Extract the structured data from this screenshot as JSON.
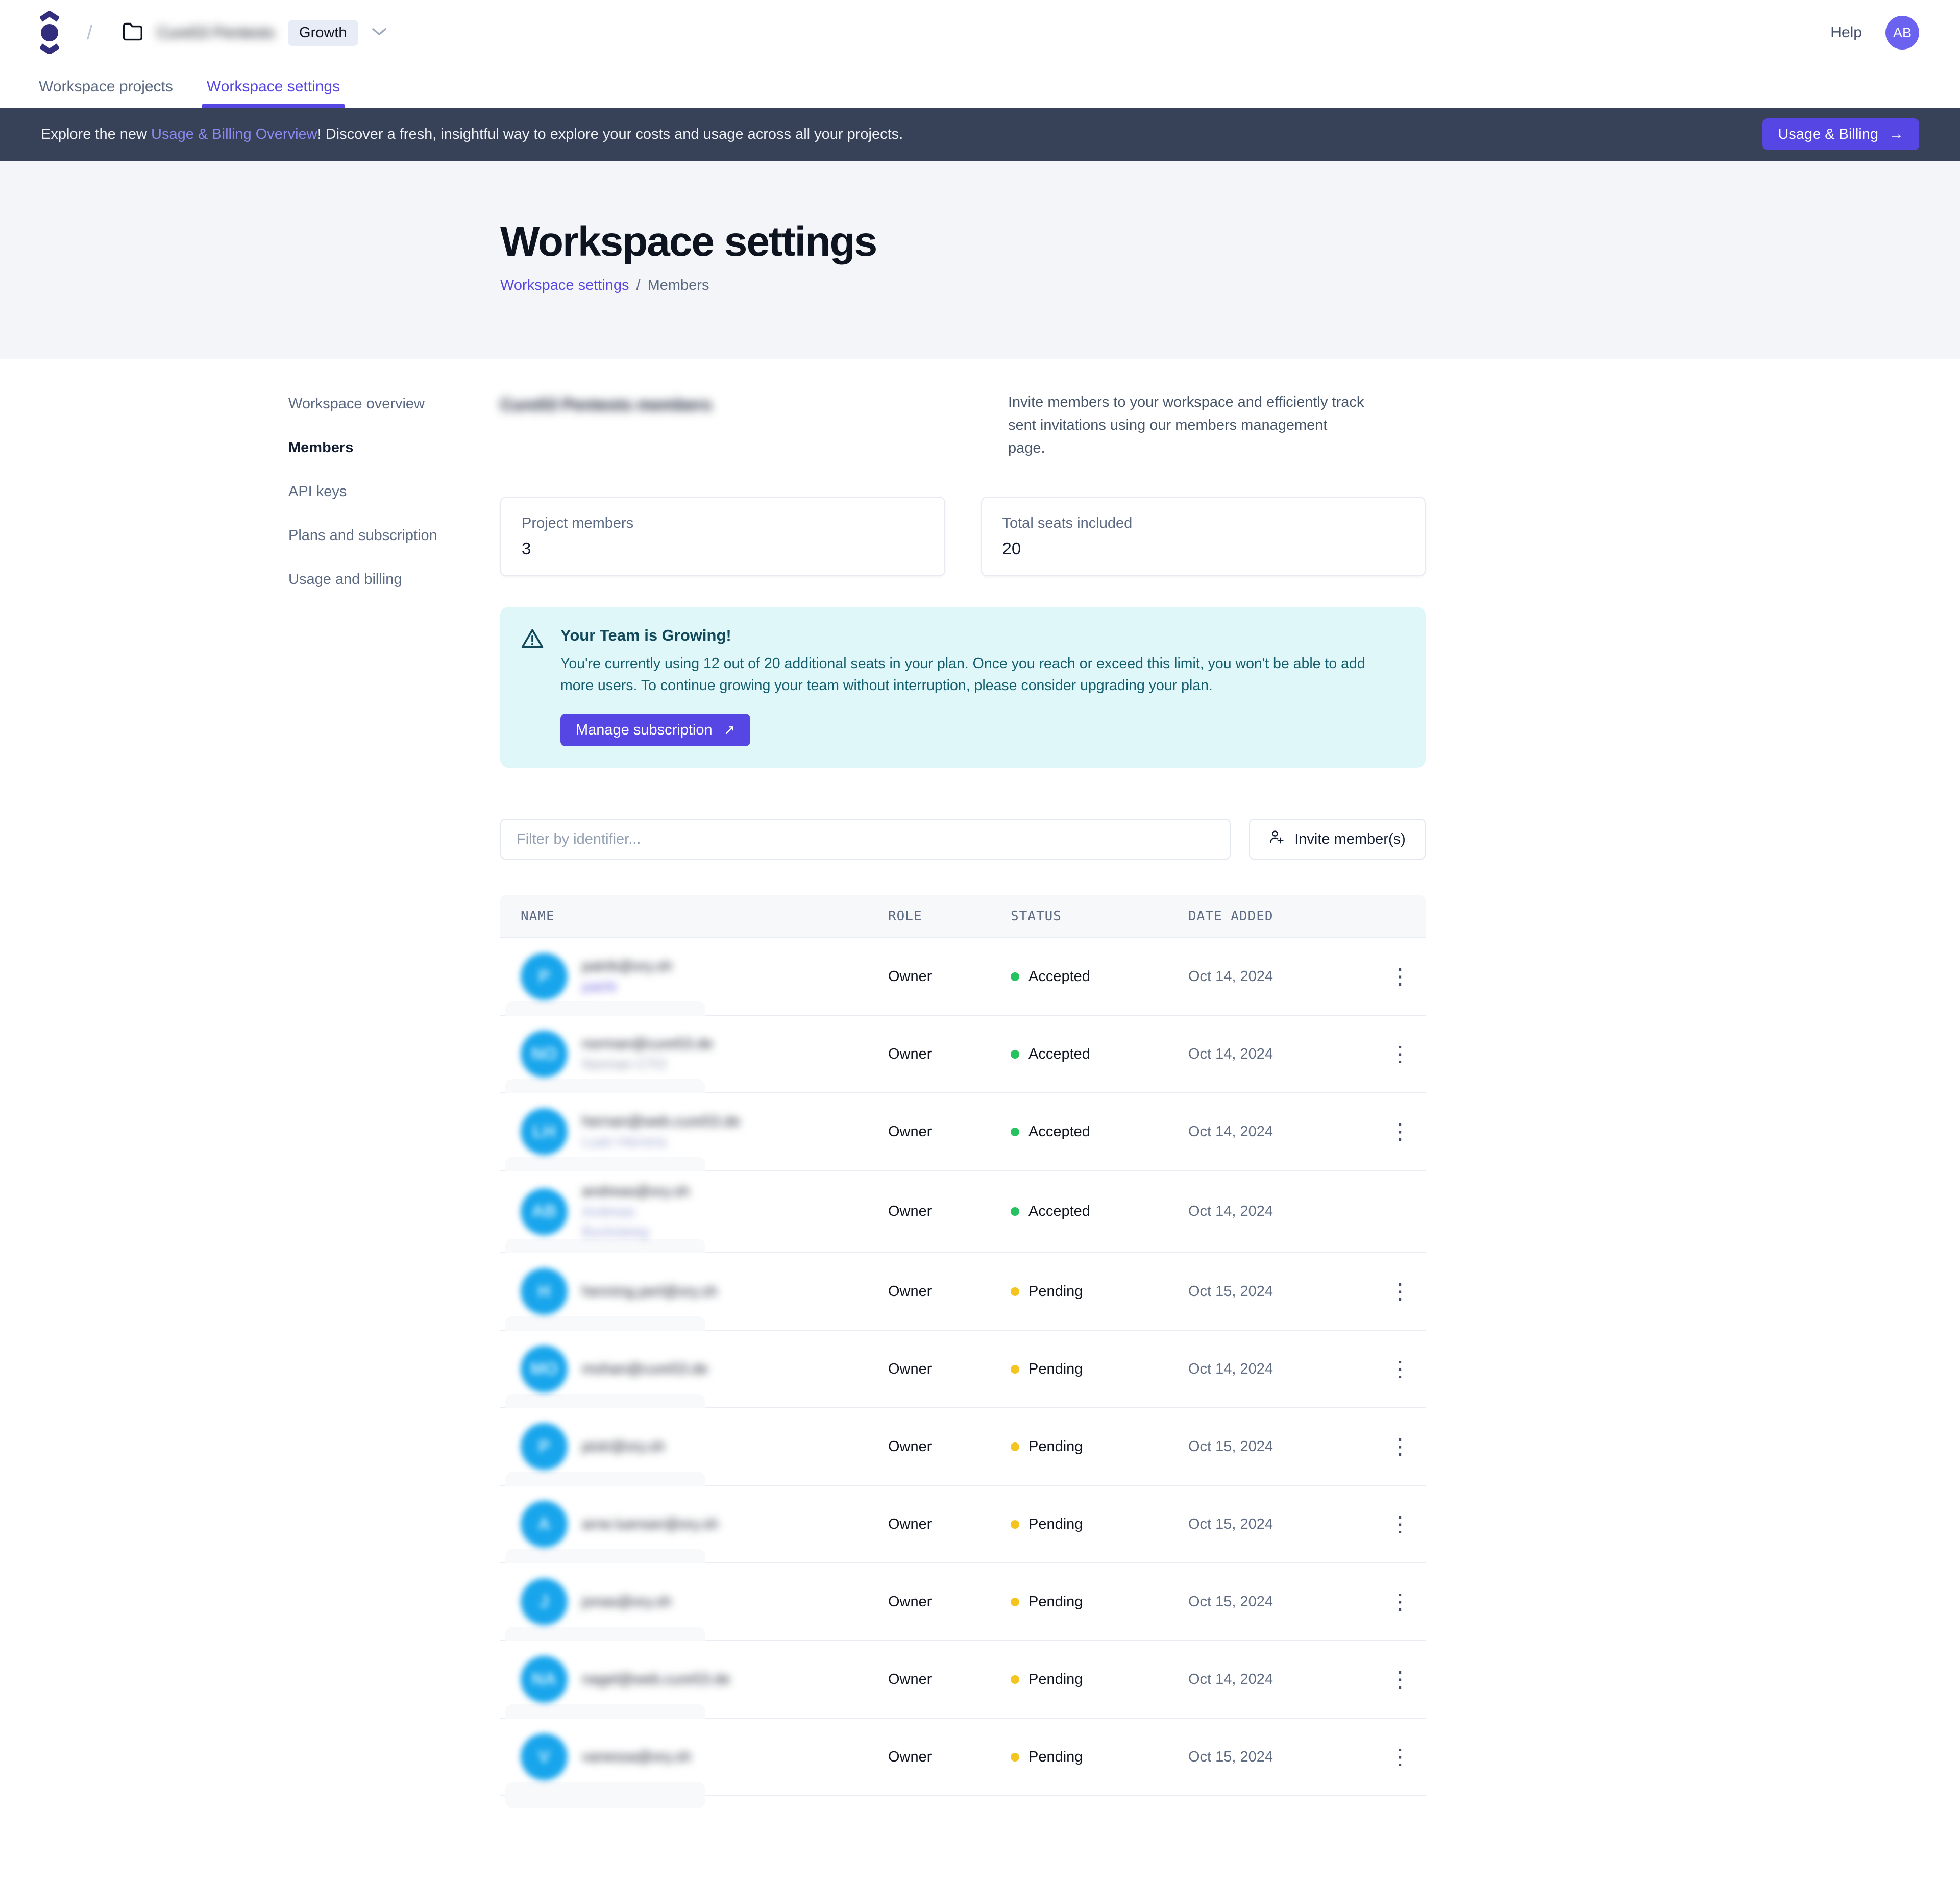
{
  "header": {
    "separator": "/",
    "workspace_name": "Cure53 Pentests",
    "plan_badge": "Growth",
    "help_label": "Help",
    "avatar_initials": "AB"
  },
  "tabs": {
    "items": [
      {
        "label": "Workspace projects",
        "active": false
      },
      {
        "label": "Workspace settings",
        "active": true
      }
    ]
  },
  "banner": {
    "prefix": "Explore the new ",
    "link_text": "Usage & Billing Overview",
    "suffix": "! Discover a fresh, insightful way to explore your costs and usage across all your projects.",
    "button_label": "Usage & Billing",
    "button_arrow": "→"
  },
  "hero": {
    "title": "Workspace settings",
    "breadcrumb_link": "Workspace settings",
    "breadcrumb_separator": "/",
    "breadcrumb_current": "Members"
  },
  "sidebar": {
    "items": [
      {
        "label": "Workspace overview",
        "active": false
      },
      {
        "label": "Members",
        "active": true
      },
      {
        "label": "API keys",
        "active": false
      },
      {
        "label": "Plans and subscription",
        "active": false
      },
      {
        "label": "Usage and billing",
        "active": false
      }
    ]
  },
  "members_section": {
    "heading": "Cure53 Pentests members",
    "description": "Invite members to your workspace and efficiently track sent invitations using our members management page."
  },
  "cards": [
    {
      "label": "Project members",
      "value": "3"
    },
    {
      "label": "Total seats included",
      "value": "20"
    }
  ],
  "alert": {
    "title": "Your Team is Growing!",
    "body": "You're currently using 12 out of 20 additional seats in your plan. Once you reach or exceed this limit, you won't be able to add more users. To continue growing your team without interruption, please consider upgrading your plan.",
    "button_label": "Manage subscription",
    "button_arrow": "↗"
  },
  "toolbar": {
    "filter_placeholder": "Filter by identifier...",
    "invite_label": "Invite member(s)"
  },
  "table": {
    "columns": [
      "NAME",
      "ROLE",
      "STATUS",
      "DATE ADDED"
    ],
    "status_colors": {
      "Accepted": "#25c25f",
      "Pending": "#f4c520"
    },
    "kebab_glyph": "⋮",
    "rows": [
      {
        "email": "patrik@ory.sh",
        "names": [
          "patrik"
        ],
        "name_color": "#6e66df",
        "initials": "P",
        "role": "Owner",
        "status": "Accepted",
        "date": "Oct 14, 2024",
        "has_menu": true
      },
      {
        "email": "norman@cure53.de",
        "names": [
          "Norman CTO"
        ],
        "name_color": "#8e99ae",
        "initials": "NO",
        "role": "Owner",
        "status": "Accepted",
        "date": "Oct 14, 2024",
        "has_menu": true
      },
      {
        "email": "hernan@web.cure53.de",
        "names": [
          "Luan Herrera"
        ],
        "name_color": "#97a0cf",
        "initials": "LH",
        "role": "Owner",
        "status": "Accepted",
        "date": "Oct 14, 2024",
        "has_menu": true
      },
      {
        "email": "andreas@ory.sh",
        "names": [
          "Andreas",
          "Bucksteeg"
        ],
        "name_color": "#979fd6",
        "initials": "AB",
        "role": "Owner",
        "status": "Accepted",
        "date": "Oct 14, 2024",
        "has_menu": false
      },
      {
        "email": "henning.perl@ory.sh",
        "names": [],
        "name_color": "#8e99ae",
        "initials": "H",
        "role": "Owner",
        "status": "Pending",
        "date": "Oct 15, 2024",
        "has_menu": true
      },
      {
        "email": "mohan@cure53.de",
        "names": [],
        "name_color": "#8e99ae",
        "initials": "MO",
        "role": "Owner",
        "status": "Pending",
        "date": "Oct 14, 2024",
        "has_menu": true
      },
      {
        "email": "piotr@ory.sh",
        "names": [],
        "name_color": "#8e99ae",
        "initials": "P",
        "role": "Owner",
        "status": "Pending",
        "date": "Oct 15, 2024",
        "has_menu": true
      },
      {
        "email": "arne.luenser@ory.sh",
        "names": [],
        "name_color": "#8e99ae",
        "initials": "A",
        "role": "Owner",
        "status": "Pending",
        "date": "Oct 15, 2024",
        "has_menu": true
      },
      {
        "email": "jonas@ory.sh",
        "names": [],
        "name_color": "#8e99ae",
        "initials": "J",
        "role": "Owner",
        "status": "Pending",
        "date": "Oct 15, 2024",
        "has_menu": true
      },
      {
        "email": "nagel@web.cure53.de",
        "names": [],
        "name_color": "#8e99ae",
        "initials": "NA",
        "role": "Owner",
        "status": "Pending",
        "date": "Oct 14, 2024",
        "has_menu": true
      },
      {
        "email": "vanessa@ory.sh",
        "names": [],
        "name_color": "#8e99ae",
        "initials": "V",
        "role": "Owner",
        "status": "Pending",
        "date": "Oct 15, 2024",
        "has_menu": true
      }
    ]
  }
}
